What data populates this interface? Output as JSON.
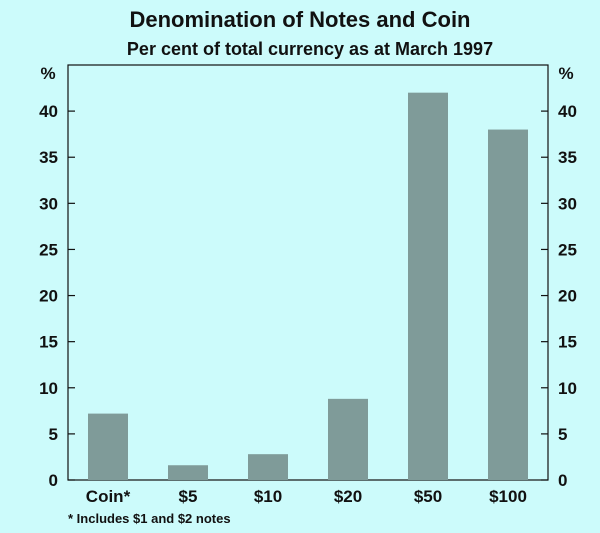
{
  "chart_data": {
    "type": "bar",
    "title": "Denomination of Notes and Coin",
    "subtitle": "Per cent of total currency as at March 1997",
    "ylabel_left": "%",
    "ylabel_right": "%",
    "categories": [
      "Coin*",
      "$5",
      "$10",
      "$20",
      "$50",
      "$100"
    ],
    "values": [
      7.2,
      1.6,
      2.8,
      8.8,
      42.0,
      38.0
    ],
    "ylim": [
      0,
      45
    ],
    "yticks": [
      0,
      5,
      10,
      15,
      20,
      25,
      30,
      35,
      40
    ],
    "grid": false,
    "footnote": "*   Includes $1 and $2 notes",
    "bar_color": "#7f9b99",
    "background_color": "#ccfbfb",
    "axis_color": "#111111"
  }
}
